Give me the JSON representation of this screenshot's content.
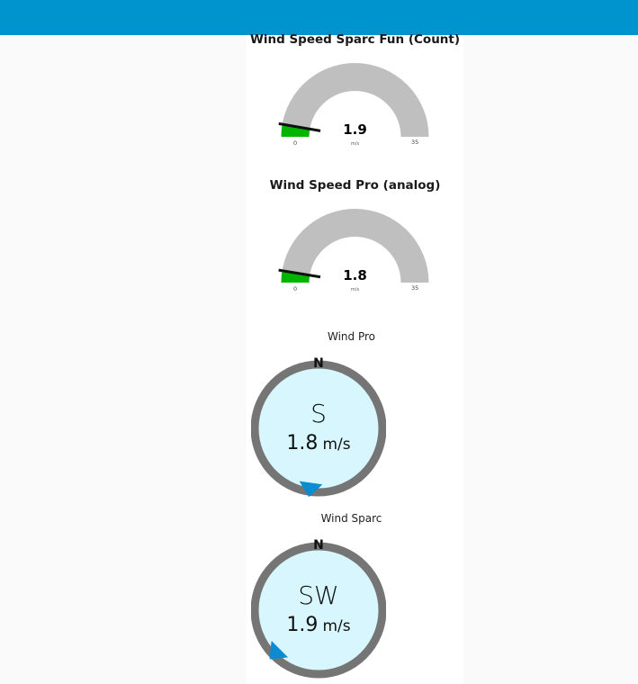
{
  "colors": {
    "header": "#0094ce",
    "gauge_track": "#bfbfbf",
    "gauge_fill": "#00b500",
    "compass_ring": "#757575",
    "compass_face": "#d7f6fd",
    "compass_pointer": "#0b8bd0"
  },
  "gauges": [
    {
      "title": "Wind Speed Sparc Fun (Count)",
      "value": 1.9,
      "value_label": "1.9",
      "unit": "m/s",
      "min": 0,
      "max": 35,
      "min_label": "0",
      "max_label": "35"
    },
    {
      "title": "Wind Speed Pro (analog)",
      "value": 1.8,
      "value_label": "1.8",
      "unit": "m/s",
      "min": 0,
      "max": 35,
      "min_label": "0",
      "max_label": "35"
    }
  ],
  "compasses": [
    {
      "title": "Wind Pro",
      "north_label": "N",
      "direction": "S",
      "direction_degrees": 188,
      "speed": "1.8",
      "unit": "m/s"
    },
    {
      "title": "Wind Sparc",
      "north_label": "N",
      "direction": "SW",
      "direction_degrees": 225,
      "speed": "1.9",
      "unit": "m/s"
    }
  ]
}
